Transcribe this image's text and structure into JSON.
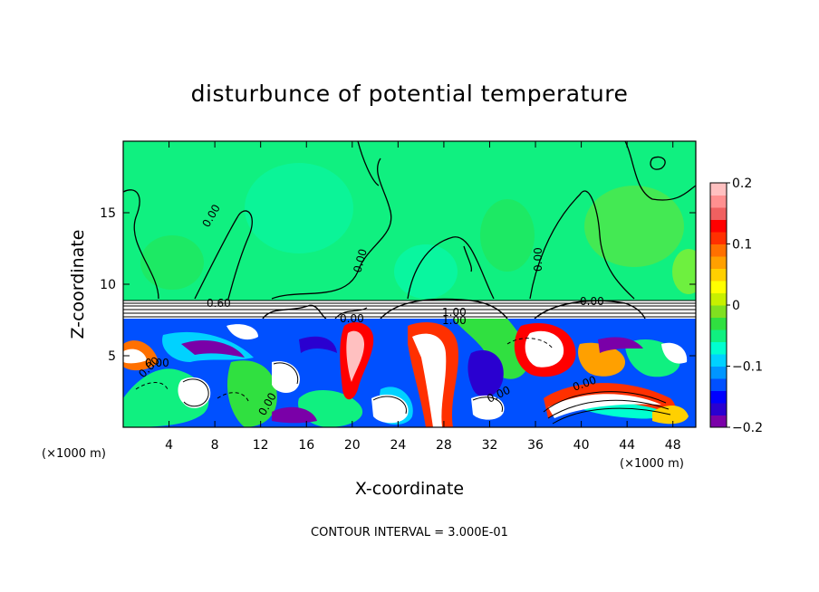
{
  "chart_data": {
    "type": "heatmap",
    "title": "disturbunce of potential temperature",
    "xlabel": "X-coordinate",
    "ylabel": "Z-coordinate",
    "x_unit_left": "(×1000 m)",
    "x_unit_right": "(×1000 m)",
    "xlim": [
      0,
      50
    ],
    "ylim": [
      0,
      20
    ],
    "x_ticks": [
      4,
      8,
      12,
      16,
      20,
      24,
      28,
      32,
      36,
      40,
      44,
      48
    ],
    "x_tick_labels": [
      "4",
      "8",
      "12",
      "16",
      "20",
      "24",
      "28",
      "32",
      "36",
      "40",
      "44",
      "48"
    ],
    "y_ticks": [
      5,
      10,
      15
    ],
    "y_tick_labels": [
      "5",
      "10",
      "15"
    ],
    "colorbar": {
      "range": [
        -0.2,
        0.2
      ],
      "tick_values": [
        0.2,
        0.1,
        0,
        -0.1,
        -0.2
      ],
      "tick_labels": [
        "0.2",
        "0.1",
        "0",
        "−0.1",
        "−0.2"
      ],
      "colors": [
        "#7a00a8",
        "#2a00d0",
        "#0000ff",
        "#0050ff",
        "#0096ff",
        "#00d2ff",
        "#00ffd0",
        "#10f080",
        "#30e040",
        "#80e020",
        "#c8f000",
        "#ffff00",
        "#ffd000",
        "#ffa000",
        "#ff7000",
        "#ff3000",
        "#ff0000",
        "#f06060",
        "#ff9090",
        "#ffc0c0"
      ]
    },
    "contour_labels": [
      "0.00",
      "0.00",
      "0.00",
      "0.00",
      "0.60",
      "1.00",
      "1.00",
      "0.00",
      "0.00",
      "0.00",
      "0.00",
      "0.00",
      "0.00"
    ],
    "footer": "CONTOUR INTERVAL = 3.000E-01"
  }
}
